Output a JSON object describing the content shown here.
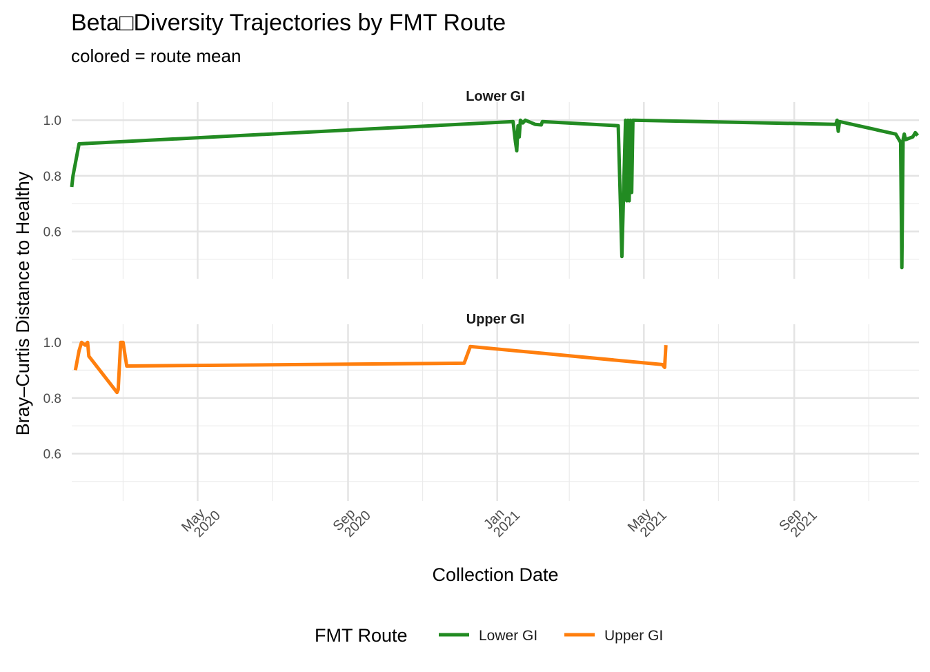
{
  "chart_data": {
    "type": "line",
    "title": "Beta□Diversity Trajectories by FMT Route",
    "subtitle": "colored = route mean",
    "xlabel": "Collection Date",
    "ylabel": "Bray–Curtis Distance to Healthy",
    "xlim": [
      "2020-01-19",
      "2021-12-12"
    ],
    "ylim": [
      0.45,
      1.05
    ],
    "y_ticks": [
      0.6,
      0.8,
      1.0
    ],
    "y_tick_labels": [
      "0.6",
      "0.8",
      "1.0"
    ],
    "x_ticks": [
      {
        "date": "2020-05-01",
        "month": "May",
        "year": "2020"
      },
      {
        "date": "2020-09-01",
        "month": "Sep",
        "year": "2020"
      },
      {
        "date": "2021-01-01",
        "month": "Jan",
        "year": "2021"
      },
      {
        "date": "2021-05-01",
        "month": "May",
        "year": "2021"
      },
      {
        "date": "2021-09-01",
        "month": "Sep",
        "year": "2021"
      }
    ],
    "x_minor_ticks": [
      "2020-03-01",
      "2020-07-01",
      "2020-11-01",
      "2021-03-01",
      "2021-07-01",
      "2021-11-01"
    ],
    "grid": true,
    "legend_position": "bottom",
    "legend_title": "FMT Route",
    "facets": [
      {
        "label": "Lower GI",
        "series": [
          {
            "name": "Lower GI",
            "color": "#228B22",
            "points": [
              [
                "2020-01-19",
                0.76
              ],
              [
                "2020-01-20",
                0.8
              ],
              [
                "2020-01-25",
                0.915
              ],
              [
                "2021-01-14",
                0.995
              ],
              [
                "2021-01-16",
                0.92
              ],
              [
                "2021-01-17",
                0.89
              ],
              [
                "2021-01-18",
                0.98
              ],
              [
                "2021-01-19",
                0.94
              ],
              [
                "2021-01-20",
                1.0
              ],
              [
                "2021-01-22",
                0.99
              ],
              [
                "2021-01-24",
                1.0
              ],
              [
                "2021-02-01",
                0.985
              ],
              [
                "2021-02-06",
                0.983
              ],
              [
                "2021-02-07",
                0.995
              ],
              [
                "2021-04-10",
                0.98
              ],
              [
                "2021-04-13",
                0.51
              ],
              [
                "2021-04-16",
                1.0
              ],
              [
                "2021-04-17",
                0.71
              ],
              [
                "2021-04-18",
                1.0
              ],
              [
                "2021-04-19",
                0.71
              ],
              [
                "2021-04-20",
                1.0
              ],
              [
                "2021-04-21",
                0.74
              ],
              [
                "2021-04-22",
                1.0
              ],
              [
                "2021-10-05",
                0.985
              ],
              [
                "2021-10-06",
                1.0
              ],
              [
                "2021-10-07",
                0.96
              ],
              [
                "2021-10-08",
                0.995
              ],
              [
                "2021-11-23",
                0.95
              ],
              [
                "2021-11-27",
                0.92
              ],
              [
                "2021-11-28",
                0.47
              ],
              [
                "2021-11-29",
                0.93
              ],
              [
                "2021-11-30",
                0.95
              ],
              [
                "2021-12-01",
                0.93
              ],
              [
                "2021-12-07",
                0.94
              ],
              [
                "2021-12-09",
                0.955
              ],
              [
                "2021-12-11",
                0.945
              ]
            ]
          }
        ]
      },
      {
        "label": "Upper GI",
        "series": [
          {
            "name": "Upper GI",
            "color": "#FF7F0E",
            "points": [
              [
                "2020-01-22",
                0.9
              ],
              [
                "2020-01-25",
                0.97
              ],
              [
                "2020-01-27",
                1.0
              ],
              [
                "2020-01-30",
                0.99
              ],
              [
                "2020-02-01",
                1.0
              ],
              [
                "2020-02-02",
                0.95
              ],
              [
                "2020-02-25",
                0.82
              ],
              [
                "2020-02-26",
                0.83
              ],
              [
                "2020-02-28",
                1.0
              ],
              [
                "2020-03-01",
                1.0
              ],
              [
                "2020-03-04",
                0.915
              ],
              [
                "2020-12-05",
                0.925
              ],
              [
                "2020-12-10",
                0.985
              ],
              [
                "2021-05-16",
                0.92
              ],
              [
                "2021-05-18",
                0.91
              ],
              [
                "2021-05-19",
                0.99
              ]
            ]
          }
        ]
      }
    ]
  }
}
